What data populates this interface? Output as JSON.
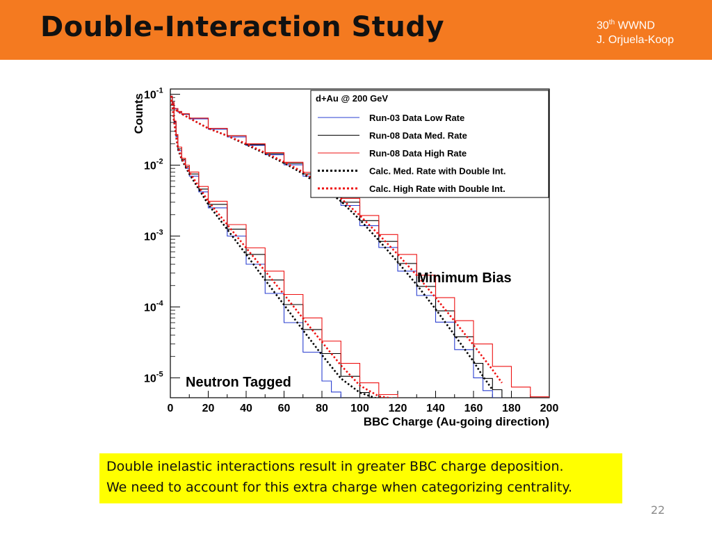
{
  "slide": {
    "title": "Double-Interaction Study",
    "conference_number": "30",
    "conference_suffix": "th",
    "conference_name": "WWND",
    "author": "J. Orjuela-Koop",
    "note_lines": [
      "Double inelastic interactions result in greater BBC charge deposition.",
      "We need to account for this extra charge when categorizing centrality."
    ],
    "page_number": "22"
  },
  "chart_data": {
    "type": "line",
    "xlabel": "BBC Charge (Au-going direction)",
    "ylabel": "Counts",
    "xlim": [
      0,
      200
    ],
    "ylim": [
      5.24e-06,
      0.1186
    ],
    "log_y": true,
    "grid": false,
    "x_ticks": [
      0,
      20,
      40,
      60,
      80,
      100,
      120,
      140,
      160,
      180,
      200
    ],
    "y_ticks": [
      {
        "value": 0.1,
        "base": "10",
        "exp": "-1"
      },
      {
        "value": 0.01,
        "base": "10",
        "exp": "-2"
      },
      {
        "value": 0.001,
        "base": "10",
        "exp": "-3"
      },
      {
        "value": 0.0001,
        "base": "10",
        "exp": "-4"
      },
      {
        "value": 1e-05,
        "base": "10",
        "exp": "-5"
      }
    ],
    "legend": {
      "title": "d+Au @ 200 GeV",
      "placement": "top-right",
      "entries": [
        {
          "label": "Run-03 Data Low Rate",
          "color": "#2a3fd0",
          "dashed": false
        },
        {
          "label": "Run-08 Data Med. Rate",
          "color": "#000000",
          "dashed": false
        },
        {
          "label": "Run-08 Data High Rate",
          "color": "#ee1111",
          "dashed": false
        },
        {
          "label": "Calc. Med. Rate with Double Int.",
          "color": "#000000",
          "dashed": true
        },
        {
          "label": "Calc. High Rate with Double Int.",
          "color": "#ee1111",
          "dashed": true
        }
      ]
    },
    "annotations": [
      {
        "text": "Minimum Bias",
        "anchor_x": 130,
        "anchor_y": 0.00048
      },
      {
        "text": "Neutron Tagged",
        "anchor_x": 8,
        "anchor_y": 8.5e-06
      }
    ],
    "series": [
      {
        "group": "Minimum Bias",
        "label": "Run-03 Data Low Rate",
        "color": "#2a3fd0",
        "dashed": false,
        "x": [
          0,
          1,
          2,
          4,
          6,
          10,
          20,
          30,
          40,
          50,
          60,
          70,
          80,
          90,
          100,
          110,
          120,
          130,
          140,
          150,
          160,
          165,
          170,
          175,
          180
        ],
        "y": [
          0.094,
          0.076,
          0.062,
          0.056,
          0.052,
          0.045,
          0.032,
          0.025,
          0.019,
          0.014,
          0.0101,
          0.007,
          0.0044,
          0.0027,
          0.0014,
          0.00069,
          0.00032,
          0.000145,
          6.1e-05,
          2.5e-05,
          1e-05,
          6.6e-06,
          5.2e-06,
          4.6e-06,
          4.3e-06
        ]
      },
      {
        "group": "Minimum Bias",
        "label": "Run-08 Data Med. Rate",
        "color": "#000000",
        "dashed": false,
        "x": [
          0,
          1,
          2,
          4,
          6,
          10,
          20,
          30,
          40,
          50,
          60,
          70,
          80,
          90,
          100,
          110,
          120,
          130,
          140,
          150,
          160,
          165,
          170,
          175,
          180
        ],
        "y": [
          0.094,
          0.077,
          0.063,
          0.057,
          0.053,
          0.046,
          0.033,
          0.026,
          0.0195,
          0.0145,
          0.0106,
          0.0075,
          0.0048,
          0.003,
          0.00165,
          0.00084,
          0.00041,
          0.000195,
          8.8e-05,
          3.8e-05,
          1.6e-05,
          9.8e-06,
          6.8e-06,
          5.2e-06,
          4.6e-06
        ]
      },
      {
        "group": "Minimum Bias",
        "label": "Run-08 Data High Rate",
        "color": "#ee1111",
        "dashed": false,
        "x": [
          0,
          1,
          2,
          4,
          6,
          10,
          20,
          30,
          40,
          50,
          60,
          70,
          80,
          90,
          100,
          110,
          120,
          130,
          140,
          150,
          160,
          170,
          180,
          190,
          200
        ],
        "y": [
          0.094,
          0.077,
          0.063,
          0.057,
          0.053,
          0.046,
          0.033,
          0.026,
          0.02,
          0.015,
          0.011,
          0.0079,
          0.0052,
          0.0034,
          0.00195,
          0.00105,
          0.00055,
          0.00028,
          0.000135,
          6.4e-05,
          3e-05,
          1.45e-05,
          7.4e-06,
          5.4e-06,
          4.5e-06
        ]
      },
      {
        "group": "Minimum Bias",
        "label": "Calc. Med. Rate with Double Int.",
        "color": "#000000",
        "dashed": true,
        "x": [
          0,
          1,
          2,
          4,
          6,
          10,
          20,
          30,
          40,
          50,
          60,
          70,
          80,
          90,
          100,
          110,
          120,
          130,
          140,
          150,
          160,
          165,
          170
        ],
        "y": [
          0.094,
          0.077,
          0.063,
          0.057,
          0.053,
          0.046,
          0.033,
          0.026,
          0.0195,
          0.0146,
          0.0107,
          0.0076,
          0.0049,
          0.0031,
          0.0017,
          0.00087,
          0.00043,
          0.000205,
          9.3e-05,
          4e-05,
          1.7e-05,
          1.05e-05,
          6.8e-06
        ]
      },
      {
        "group": "Minimum Bias",
        "label": "Calc. High Rate with Double Int.",
        "color": "#ee1111",
        "dashed": true,
        "x": [
          0,
          1,
          2,
          4,
          6,
          10,
          20,
          30,
          40,
          50,
          60,
          70,
          80,
          90,
          100,
          110,
          120,
          130,
          140,
          150,
          160,
          170,
          175
        ],
        "y": [
          0.094,
          0.077,
          0.063,
          0.057,
          0.053,
          0.046,
          0.033,
          0.026,
          0.02,
          0.015,
          0.0111,
          0.008,
          0.0053,
          0.0034,
          0.00195,
          0.00105,
          0.00055,
          0.00028,
          0.000135,
          6.3e-05,
          2.9e-05,
          1.3e-05,
          8.5e-06
        ]
      },
      {
        "group": "Neutron Tagged",
        "label": "Run-03 Data Low Rate",
        "color": "#2a3fd0",
        "dashed": false,
        "x": [
          0,
          1,
          2,
          3,
          4,
          6,
          8,
          10,
          15,
          20,
          30,
          40,
          50,
          60,
          70,
          80,
          85,
          90,
          95
        ],
        "y": [
          0.094,
          0.07,
          0.04,
          0.025,
          0.016,
          0.0115,
          0.009,
          0.007,
          0.0042,
          0.0025,
          0.001,
          0.0004,
          0.000155,
          6e-05,
          2.3e-05,
          9e-06,
          6.3e-06,
          5e-06,
          4.5e-06
        ]
      },
      {
        "group": "Neutron Tagged",
        "label": "Run-08 Data Med. Rate",
        "color": "#000000",
        "dashed": false,
        "x": [
          0,
          1,
          2,
          3,
          4,
          6,
          8,
          10,
          15,
          20,
          30,
          40,
          50,
          60,
          70,
          80,
          90,
          100,
          105,
          110
        ],
        "y": [
          0.094,
          0.07,
          0.041,
          0.026,
          0.017,
          0.012,
          0.0095,
          0.0075,
          0.0046,
          0.0028,
          0.00125,
          0.00055,
          0.00024,
          0.000108,
          4.8e-05,
          2.2e-05,
          1.05e-05,
          6.2e-06,
          5e-06,
          4.5e-06
        ]
      },
      {
        "group": "Neutron Tagged",
        "label": "Run-08 Data High Rate",
        "color": "#ee1111",
        "dashed": false,
        "x": [
          0,
          1,
          2,
          3,
          4,
          6,
          8,
          10,
          15,
          20,
          30,
          40,
          50,
          60,
          70,
          80,
          90,
          100,
          110,
          120,
          125
        ],
        "y": [
          0.094,
          0.071,
          0.042,
          0.027,
          0.018,
          0.0125,
          0.01,
          0.008,
          0.005,
          0.0031,
          0.00145,
          0.00068,
          0.00032,
          0.00015,
          7e-05,
          3.3e-05,
          1.6e-05,
          8.5e-06,
          5.8e-06,
          4.8e-06,
          4.5e-06
        ]
      },
      {
        "group": "Neutron Tagged",
        "label": "Calc. Med. Rate with Double Int.",
        "color": "#000000",
        "dashed": true,
        "x": [
          0,
          1,
          2,
          3,
          4,
          6,
          8,
          10,
          15,
          20,
          30,
          40,
          50,
          60,
          70,
          80,
          90,
          100,
          110
        ],
        "y": [
          0.094,
          0.07,
          0.041,
          0.026,
          0.017,
          0.012,
          0.0095,
          0.0075,
          0.0046,
          0.0028,
          0.00124,
          0.00055,
          0.00024,
          0.000107,
          4.7e-05,
          2.1e-05,
          9.8e-06,
          6.2e-06,
          5e-06
        ]
      },
      {
        "group": "Neutron Tagged",
        "label": "Calc. High Rate with Double Int.",
        "color": "#ee1111",
        "dashed": true,
        "x": [
          0,
          1,
          2,
          3,
          4,
          6,
          8,
          10,
          15,
          20,
          30,
          40,
          50,
          60,
          70,
          80,
          90,
          100,
          110,
          120
        ],
        "y": [
          0.094,
          0.071,
          0.042,
          0.027,
          0.018,
          0.0125,
          0.01,
          0.008,
          0.005,
          0.0031,
          0.00145,
          0.00068,
          0.00032,
          0.00015,
          6.9e-05,
          3.2e-05,
          1.5e-05,
          7.8e-06,
          5.5e-06,
          5e-06
        ]
      }
    ]
  }
}
